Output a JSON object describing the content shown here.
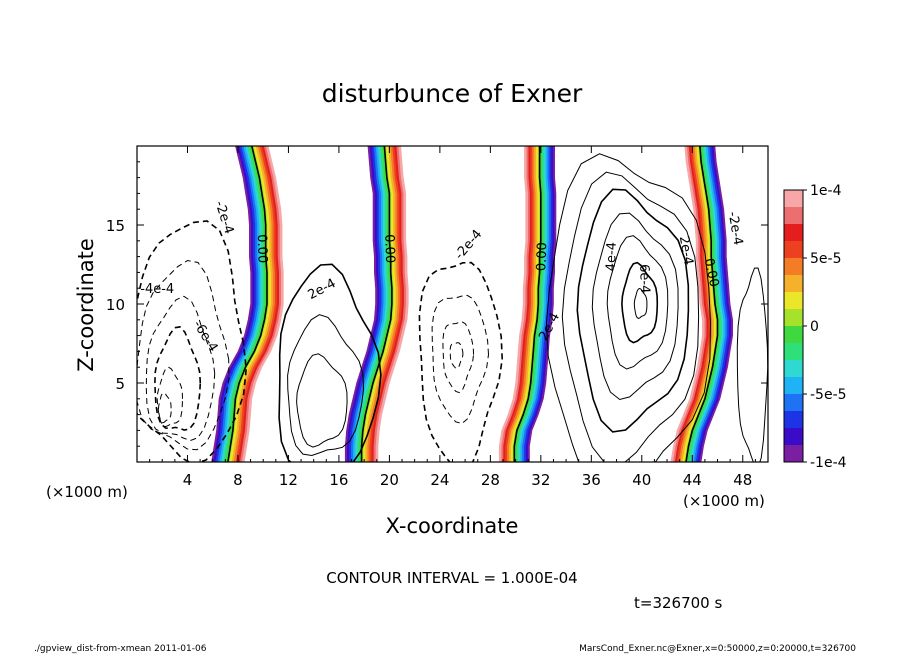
{
  "chart_data": {
    "type": "contour",
    "title": "disturbunce of Exner",
    "xlabel": "X-coordinate",
    "ylabel": "Z-coordinate",
    "x_unit_left": "(×1000 m)",
    "x_unit_right": "(×1000 m)",
    "xlim": [
      0,
      50
    ],
    "ylim": [
      0,
      20
    ],
    "xticks": [
      4,
      8,
      12,
      16,
      20,
      24,
      28,
      32,
      36,
      40,
      44,
      48
    ],
    "xtick_labels": [
      "4",
      "8",
      "12",
      "16",
      "20",
      "24",
      "28",
      "32",
      "36",
      "40",
      "44",
      "48"
    ],
    "yticks": [
      5,
      10,
      15
    ],
    "ytick_labels": [
      "5",
      "10",
      "15"
    ],
    "contour_interval_text": "CONTOUR INTERVAL = 1.000E-04",
    "time_text": "t=326700 s",
    "colorbar": {
      "min": -0.0001,
      "max": 0.0001,
      "tick_values": [
        0.0001,
        5e-05,
        0,
        -5e-05,
        -0.0001
      ],
      "tick_labels": [
        "1e-4",
        "5e-5",
        "0",
        "-5e-5",
        "-1e-4"
      ],
      "colors": [
        "#7b1fa2",
        "#3a0cc7",
        "#1f33e6",
        "#1e73f5",
        "#1fb2f5",
        "#2fd8d0",
        "#2fe07a",
        "#3fd83f",
        "#a6e22b",
        "#ece62a",
        "#f6b12a",
        "#f37c25",
        "#ec4020",
        "#e41e1e",
        "#ec6f6f",
        "#f7a7a7"
      ]
    },
    "contour_labels": [
      {
        "text": "0.00",
        "x": 10.0,
        "y": 13.5,
        "angle": 88
      },
      {
        "text": "0.00",
        "x": 20.1,
        "y": 13.5,
        "angle": 88
      },
      {
        "text": "0.00",
        "x": 32.0,
        "y": 13.0,
        "angle": -88
      },
      {
        "text": "0.00",
        "x": 45.6,
        "y": 12.0,
        "angle": 78
      },
      {
        "text": "-2e-4",
        "x": 7.0,
        "y": 15.5,
        "angle": 72
      },
      {
        "text": "-4e-4",
        "x": 1.6,
        "y": 11.0,
        "angle": 0
      },
      {
        "text": "-6e-4",
        "x": 5.5,
        "y": 8.0,
        "angle": 58
      },
      {
        "text": "2e-4",
        "x": 14.6,
        "y": 11.0,
        "angle": -28
      },
      {
        "text": "-2e-4",
        "x": 26.2,
        "y": 13.8,
        "angle": -50
      },
      {
        "text": "2e-4",
        "x": 32.6,
        "y": 8.6,
        "angle": -62
      },
      {
        "text": "4e-4",
        "x": 37.5,
        "y": 13.0,
        "angle": -88
      },
      {
        "text": "6e-4",
        "x": 40.3,
        "y": 11.6,
        "angle": 88
      },
      {
        "text": "2e-4",
        "x": 43.6,
        "y": 13.4,
        "angle": 80
      },
      {
        "text": "-2e-4",
        "x": 47.5,
        "y": 14.8,
        "angle": 80
      }
    ],
    "bands": [
      {
        "x": [
          7.2,
          7.4,
          7.6,
          7.7,
          7.8,
          8.1,
          8.6,
          9.3,
          9.8,
          10.1,
          10.3,
          10.3,
          10.3,
          10.2,
          10.2,
          10.2,
          10.1,
          9.9,
          9.7,
          9.4,
          9.1
        ],
        "direction": "pos_right",
        "width": 2.6
      },
      {
        "x": [
          17.8,
          17.8,
          17.9,
          18.1,
          18.4,
          18.7,
          19.1,
          19.5,
          19.8,
          20.1,
          20.2,
          20.2,
          20.1,
          20.1,
          20.0,
          20.0,
          20.0,
          20.0,
          19.8,
          19.7,
          19.6
        ],
        "direction": "pos_right",
        "width": 2.6
      },
      {
        "x": [
          29.9,
          29.9,
          30.1,
          30.6,
          31.0,
          31.2,
          31.3,
          31.4,
          31.5,
          31.7,
          31.8,
          31.8,
          31.9,
          31.9,
          32.0,
          32.0,
          32.0,
          32.0,
          31.9,
          31.9,
          31.9
        ],
        "direction": "pos_left",
        "width": 2.4
      },
      {
        "x": [
          43.5,
          43.7,
          44.0,
          44.5,
          45.0,
          45.3,
          45.6,
          45.8,
          46.0,
          46.0,
          45.8,
          45.7,
          45.6,
          45.5,
          45.5,
          45.4,
          45.3,
          45.1,
          44.9,
          44.7,
          44.6
        ],
        "direction": "pos_left",
        "width": 2.4
      }
    ],
    "band_z": [
      0,
      1,
      2,
      3,
      4,
      5,
      6,
      7,
      8,
      9,
      10,
      11,
      12,
      13,
      14,
      15,
      16,
      17,
      18,
      19,
      20
    ]
  },
  "footer": {
    "left": "./gpview_dist-from-xmean  2011-01-06",
    "right": "MarsCond_Exner.nc@Exner,x=0:50000,z=0:20000,t=326700"
  }
}
